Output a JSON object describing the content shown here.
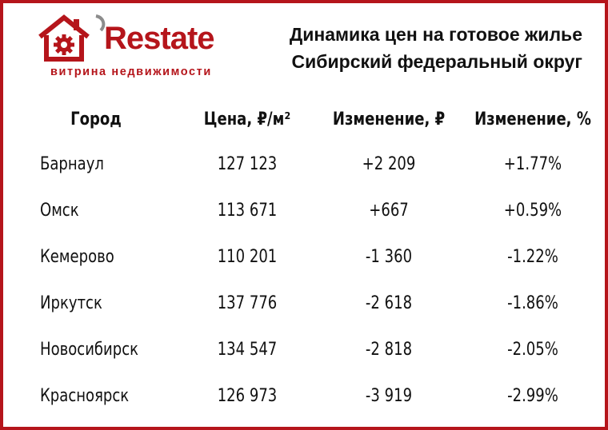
{
  "logo": {
    "wordmark": "Restate",
    "tagline": "витрина недвижимости",
    "brand_color": "#b5151b",
    "icon": "house-gear-icon"
  },
  "title": {
    "line1": "Динамика цен на готовое жилье",
    "line2": "Сибирский федеральный округ"
  },
  "chart_data": {
    "type": "table",
    "columns": [
      "Город",
      "Цена, ₽/м²",
      "Изменение, ₽",
      "Изменение, %"
    ],
    "rows": [
      {
        "city": "Барнаул",
        "price": "127 123",
        "change_rub": "+2 209",
        "change_pct": "+1.77%"
      },
      {
        "city": "Омск",
        "price": "113 671",
        "change_rub": "+667",
        "change_pct": "+0.59%"
      },
      {
        "city": "Кемерово",
        "price": "110 201",
        "change_rub": "-1 360",
        "change_pct": "-1.22%"
      },
      {
        "city": "Иркутск",
        "price": "137 776",
        "change_rub": "-2 618",
        "change_pct": "-1.86%"
      },
      {
        "city": "Новосибирск",
        "price": "134 547",
        "change_rub": "-2 818",
        "change_pct": "-2.05%"
      },
      {
        "city": "Красноярск",
        "price": "126 973",
        "change_rub": "-3 919",
        "change_pct": "-2.99%"
      }
    ]
  }
}
